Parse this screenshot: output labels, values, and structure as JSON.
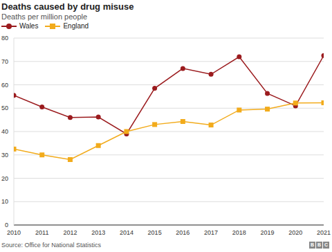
{
  "chart_data": {
    "type": "line",
    "title": "Deaths caused by drug misuse",
    "subtitle": "Deaths per million people",
    "source": "Source: Office for National Statistics",
    "credit": "BBC",
    "x": [
      2010,
      2011,
      2012,
      2013,
      2014,
      2015,
      2016,
      2017,
      2018,
      2019,
      2020,
      2021
    ],
    "series": [
      {
        "name": "Wales",
        "color": "#9b1b1e",
        "marker": "circle",
        "values": [
          55.5,
          50.5,
          46,
          46.2,
          39,
          58.5,
          67,
          64.5,
          72,
          56.3,
          51,
          72.5
        ]
      },
      {
        "name": "England",
        "color": "#f2ab1b",
        "marker": "square",
        "values": [
          32.5,
          30,
          28,
          34,
          40,
          43,
          44.3,
          42.8,
          49.2,
          49.6,
          52.2,
          52.3
        ]
      }
    ],
    "xlim": [
      2010,
      2021
    ],
    "xticks": [
      2010,
      2011,
      2012,
      2013,
      2014,
      2015,
      2016,
      2017,
      2018,
      2019,
      2020,
      2021
    ],
    "ylim": [
      0,
      80
    ],
    "yticks": [
      0,
      10,
      20,
      30,
      40,
      50,
      60,
      70,
      80
    ],
    "grid": true
  }
}
